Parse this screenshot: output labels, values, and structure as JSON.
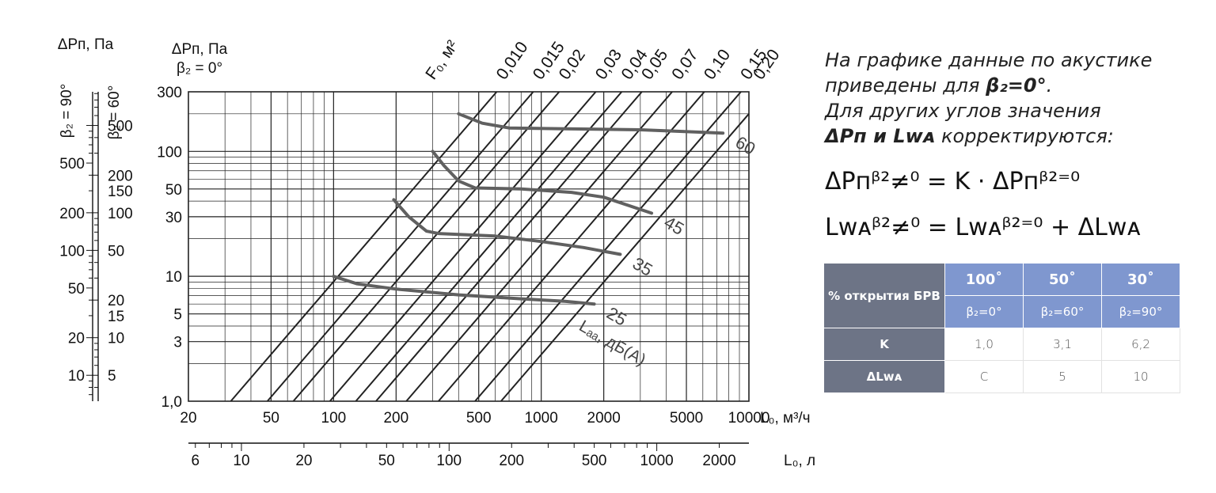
{
  "chart_data": {
    "type": "line",
    "log_scale": true,
    "xlabel_main": "L₀, м³/ч",
    "xlabel_secondary": "L₀, л/с",
    "ylabel_main": "ΔPп, Па",
    "ylabel_main_sub": "β₂ = 0°",
    "ylabel_left_title": "ΔPп, Па",
    "ylabel_left_90": "β₂ = 90°",
    "ylabel_left_60": "β₂ = 60°",
    "x_range": [
      20,
      10000
    ],
    "y_range": [
      1,
      300
    ],
    "x_tick_labels": [
      "20",
      "50",
      "100",
      "200",
      "500",
      "1000",
      "2000",
      "5000",
      "10000"
    ],
    "x_tick_values": [
      20,
      50,
      100,
      200,
      500,
      1000,
      2000,
      5000,
      10000
    ],
    "x2_tick_labels": [
      "6",
      "10",
      "20",
      "50",
      "100",
      "200",
      "500",
      "1000",
      "2000"
    ],
    "x2_tick_values": [
      6,
      10,
      20,
      50,
      100,
      200,
      500,
      1000,
      2000
    ],
    "y_tick_labels": [
      "1,0",
      "3",
      "5",
      "10",
      "30",
      "50",
      "100",
      "300"
    ],
    "y_tick_values": [
      1,
      3,
      5,
      10,
      30,
      50,
      100,
      300
    ],
    "y90_tick_labels": [
      "10",
      "20",
      "50",
      "100",
      "200",
      "500"
    ],
    "y90_tick_values": [
      10,
      20,
      50,
      100,
      200,
      500
    ],
    "y60_tick_labels": [
      "5",
      "10",
      "15",
      "20",
      "50",
      "100",
      "150",
      "200",
      "500"
    ],
    "y60_tick_values": [
      5,
      10,
      15,
      20,
      50,
      100,
      150,
      200,
      500
    ],
    "area_title": "F₀, м²",
    "area_labels": [
      "0,010",
      "0,015",
      "0,02",
      "0,03",
      "0,04",
      "0,05",
      "0,07",
      "0,10",
      "0,15",
      "0,20"
    ],
    "area_values": [
      0.01,
      0.015,
      0.02,
      0.03,
      0.04,
      0.05,
      0.07,
      0.1,
      0.15,
      0.2
    ],
    "area_line_points": [
      [
        [
          32,
          1
        ],
        [
          610,
          300
        ]
      ],
      [
        [
          48,
          1
        ],
        [
          915,
          300
        ]
      ],
      [
        [
          64,
          1
        ],
        [
          1220,
          300
        ]
      ],
      [
        [
          96,
          1
        ],
        [
          1830,
          300
        ]
      ],
      [
        [
          128,
          1
        ],
        [
          2440,
          300
        ]
      ],
      [
        [
          160,
          1
        ],
        [
          3050,
          300
        ]
      ],
      [
        [
          224,
          1
        ],
        [
          4270,
          300
        ]
      ],
      [
        [
          320,
          1
        ],
        [
          6100,
          300
        ]
      ],
      [
        [
          480,
          1
        ],
        [
          9150,
          300
        ]
      ],
      [
        [
          640,
          1
        ],
        [
          10000,
          200
        ]
      ]
    ],
    "noise_label": "Lₐₐ, дБ(A)",
    "noise_curves": [
      {
        "label": "60",
        "points": [
          [
            400,
            200
          ],
          [
            520,
            168
          ],
          [
            700,
            154
          ],
          [
            1200,
            152
          ],
          [
            3000,
            149
          ],
          [
            7500,
            140
          ]
        ]
      },
      {
        "label": "45",
        "points": [
          [
            300,
            100
          ],
          [
            340,
            77
          ],
          [
            400,
            58
          ],
          [
            480,
            51
          ],
          [
            800,
            50
          ],
          [
            1400,
            47
          ],
          [
            2000,
            43
          ],
          [
            3400,
            32
          ]
        ]
      },
      {
        "label": "35",
        "points": [
          [
            195,
            41
          ],
          [
            230,
            30
          ],
          [
            280,
            23
          ],
          [
            320,
            22
          ],
          [
            600,
            21
          ],
          [
            1000,
            19
          ],
          [
            1600,
            17
          ],
          [
            2400,
            15
          ]
        ]
      },
      {
        "label": "25",
        "points": [
          [
            100,
            10
          ],
          [
            130,
            8.7
          ],
          [
            200,
            7.9
          ],
          [
            400,
            7.1
          ],
          [
            800,
            6.6
          ],
          [
            1300,
            6.3
          ],
          [
            1800,
            6.0
          ]
        ]
      }
    ],
    "grid": true
  },
  "note": {
    "line1": "На графике данные по акустике",
    "line2_pre": "приведены для ",
    "line2_bold": "β₂=0°",
    "line2_post": ".",
    "line3": "Для  других углов значения",
    "line4_bold": "ΔPп и Lᴡᴀ",
    "line4_post": " корректируются:"
  },
  "formulas": {
    "f1": "ΔPпᵝ²≠⁰ = K · ΔPпᵝ²⁼⁰",
    "f2": "Lᴡᴀᵝ²≠⁰ = Lᴡᴀᵝ²⁼⁰ + ΔLᴡᴀ"
  },
  "table": {
    "header_label": "% открытия БРВ",
    "open_values": [
      "100˚",
      "50˚",
      "30˚"
    ],
    "angles": [
      "β₂=0°",
      "β₂=60°",
      "β₂=90°"
    ],
    "row_k_label": "K",
    "row_k": [
      "1,0",
      "3,1",
      "6,2"
    ],
    "row_dl_label": "ΔLᴡᴀ",
    "row_dl": [
      "C",
      "5",
      "10"
    ]
  },
  "colors": {
    "grid": "#222222",
    "curves": "#606060",
    "header": "#6d7486",
    "accent": "#7f97cf"
  }
}
